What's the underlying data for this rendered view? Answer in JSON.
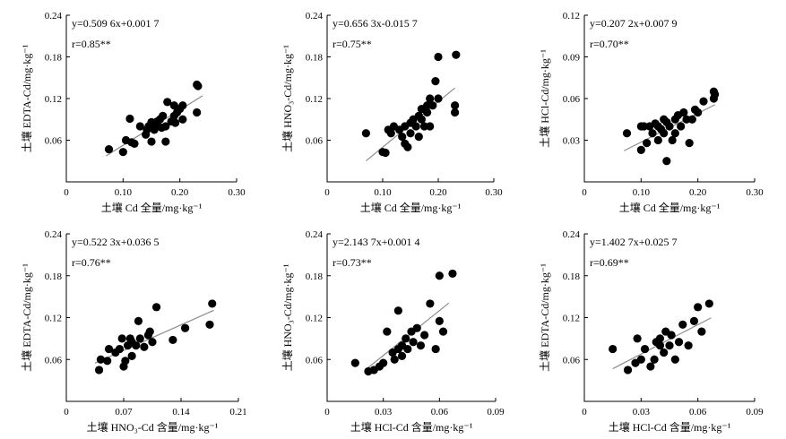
{
  "chart_data": [
    {
      "type": "scatter",
      "xlabel": "土壤 Cd 全量/mg·kg⁻¹",
      "ylabel": "土壤 EDTA-Cd/mg·kg⁻¹",
      "xlim": [
        0,
        0.3
      ],
      "ylim": [
        0,
        0.24
      ],
      "xticks": [
        "0",
        "0.10",
        "0.20",
        "0.30"
      ],
      "yticks": [
        "0.06",
        "0.12",
        "0.18",
        "0.24"
      ],
      "equation": "y=0.509 6x+0.001 7",
      "r_label": "r=0.85**",
      "slope": 0.5096,
      "intercept": 0.0017,
      "fit_x": [
        0.07,
        0.24
      ],
      "points": [
        [
          0.075,
          0.047
        ],
        [
          0.1,
          0.043
        ],
        [
          0.105,
          0.06
        ],
        [
          0.112,
          0.091
        ],
        [
          0.115,
          0.057
        ],
        [
          0.12,
          0.055
        ],
        [
          0.13,
          0.08
        ],
        [
          0.14,
          0.068
        ],
        [
          0.142,
          0.075
        ],
        [
          0.145,
          0.08
        ],
        [
          0.15,
          0.058
        ],
        [
          0.15,
          0.086
        ],
        [
          0.155,
          0.075
        ],
        [
          0.16,
          0.087
        ],
        [
          0.16,
          0.082
        ],
        [
          0.165,
          0.09
        ],
        [
          0.168,
          0.078
        ],
        [
          0.17,
          0.095
        ],
        [
          0.175,
          0.08
        ],
        [
          0.175,
          0.058
        ],
        [
          0.178,
          0.115
        ],
        [
          0.185,
          0.087
        ],
        [
          0.19,
          0.095
        ],
        [
          0.19,
          0.11
        ],
        [
          0.192,
          0.085
        ],
        [
          0.195,
          0.1
        ],
        [
          0.2,
          0.105
        ],
        [
          0.205,
          0.11
        ],
        [
          0.205,
          0.09
        ],
        [
          0.23,
          0.1
        ],
        [
          0.23,
          0.14
        ],
        [
          0.232,
          0.138
        ]
      ]
    },
    {
      "type": "scatter",
      "xlabel": "土壤 Cd 全量/mg·kg⁻¹",
      "ylabel": "土壤 HNO₃-Cd/mg·kg⁻¹",
      "xlim": [
        0,
        0.3
      ],
      "ylim": [
        0,
        0.24
      ],
      "xticks": [
        "0",
        "0.10",
        "0.20",
        "0.30"
      ],
      "yticks": [
        "0.06",
        "0.12",
        "0.18",
        "0.24"
      ],
      "equation": "y=0.656 3x-0.015 7",
      "r_label": "r=0.75**",
      "slope": 0.6563,
      "intercept": -0.0157,
      "fit_x": [
        0.07,
        0.23
      ],
      "points": [
        [
          0.07,
          0.07
        ],
        [
          0.1,
          0.043
        ],
        [
          0.105,
          0.042
        ],
        [
          0.11,
          0.075
        ],
        [
          0.115,
          0.07
        ],
        [
          0.12,
          0.08
        ],
        [
          0.13,
          0.075
        ],
        [
          0.135,
          0.065
        ],
        [
          0.14,
          0.08
        ],
        [
          0.14,
          0.055
        ],
        [
          0.145,
          0.05
        ],
        [
          0.15,
          0.07
        ],
        [
          0.15,
          0.085
        ],
        [
          0.155,
          0.09
        ],
        [
          0.16,
          0.08
        ],
        [
          0.165,
          0.095
        ],
        [
          0.165,
          0.065
        ],
        [
          0.17,
          0.09
        ],
        [
          0.17,
          0.105
        ],
        [
          0.175,
          0.08
        ],
        [
          0.18,
          0.11
        ],
        [
          0.18,
          0.1
        ],
        [
          0.185,
          0.12
        ],
        [
          0.185,
          0.08
        ],
        [
          0.19,
          0.11
        ],
        [
          0.195,
          0.145
        ],
        [
          0.2,
          0.18
        ],
        [
          0.2,
          0.12
        ],
        [
          0.23,
          0.1
        ],
        [
          0.23,
          0.11
        ],
        [
          0.232,
          0.183
        ]
      ]
    },
    {
      "type": "scatter",
      "xlabel": "土壤 Cd 全量/mg·kg⁻¹",
      "ylabel": "土壤 HCl-Cd/mg·kg⁻¹",
      "xlim": [
        0,
        0.3
      ],
      "ylim": [
        0,
        0.12
      ],
      "xticks": [
        "0",
        "0.10",
        "0.20",
        "0.30"
      ],
      "yticks": [
        "0.03",
        "0.06",
        "0.09",
        "0.12"
      ],
      "equation": "y=0.207 2x+0.007 9",
      "r_label": "r=0.70**",
      "slope": 0.2072,
      "intercept": 0.0079,
      "fit_x": [
        0.07,
        0.23
      ],
      "points": [
        [
          0.075,
          0.035
        ],
        [
          0.1,
          0.023
        ],
        [
          0.1,
          0.04
        ],
        [
          0.105,
          0.04
        ],
        [
          0.11,
          0.028
        ],
        [
          0.115,
          0.04
        ],
        [
          0.12,
          0.035
        ],
        [
          0.125,
          0.042
        ],
        [
          0.13,
          0.04
        ],
        [
          0.13,
          0.03
        ],
        [
          0.135,
          0.038
        ],
        [
          0.14,
          0.035
        ],
        [
          0.14,
          0.045
        ],
        [
          0.145,
          0.043
        ],
        [
          0.145,
          0.015
        ],
        [
          0.15,
          0.04
        ],
        [
          0.155,
          0.03
        ],
        [
          0.16,
          0.045
        ],
        [
          0.16,
          0.035
        ],
        [
          0.165,
          0.048
        ],
        [
          0.17,
          0.04
        ],
        [
          0.175,
          0.05
        ],
        [
          0.18,
          0.045
        ],
        [
          0.185,
          0.028
        ],
        [
          0.19,
          0.045
        ],
        [
          0.195,
          0.052
        ],
        [
          0.2,
          0.05
        ],
        [
          0.21,
          0.058
        ],
        [
          0.228,
          0.06
        ],
        [
          0.228,
          0.065
        ],
        [
          0.23,
          0.063
        ]
      ]
    },
    {
      "type": "scatter",
      "xlabel": "土壤 HNO₃-Cd 含量/mg·kg⁻¹",
      "ylabel": "土壤 EDTA-Cd/mg·kg⁻¹",
      "xlim": [
        0,
        0.21
      ],
      "ylim": [
        0,
        0.24
      ],
      "xticks": [
        "0",
        "0.07",
        "0.14",
        "0.21"
      ],
      "yticks": [
        "0.06",
        "0.12",
        "0.18",
        "0.24"
      ],
      "equation": "y=0.522 3x+0.036 5",
      "r_label": "r=0.76**",
      "slope": 0.5223,
      "intercept": 0.0365,
      "fit_x": [
        0.035,
        0.18
      ],
      "points": [
        [
          0.04,
          0.045
        ],
        [
          0.042,
          0.06
        ],
        [
          0.05,
          0.058
        ],
        [
          0.052,
          0.075
        ],
        [
          0.06,
          0.07
        ],
        [
          0.065,
          0.075
        ],
        [
          0.068,
          0.09
        ],
        [
          0.07,
          0.05
        ],
        [
          0.072,
          0.058
        ],
        [
          0.075,
          0.08
        ],
        [
          0.078,
          0.09
        ],
        [
          0.08,
          0.085
        ],
        [
          0.08,
          0.065
        ],
        [
          0.085,
          0.08
        ],
        [
          0.088,
          0.115
        ],
        [
          0.09,
          0.09
        ],
        [
          0.095,
          0.078
        ],
        [
          0.1,
          0.095
        ],
        [
          0.102,
          0.1
        ],
        [
          0.105,
          0.085
        ],
        [
          0.11,
          0.135
        ],
        [
          0.13,
          0.088
        ],
        [
          0.145,
          0.105
        ],
        [
          0.175,
          0.11
        ],
        [
          0.178,
          0.14
        ]
      ]
    },
    {
      "type": "scatter",
      "xlabel": "土壤 HCl-Cd 含量/mg·kg⁻¹",
      "ylabel": "土壤 HNO₃-Cd/mg·kg⁻¹",
      "xlim": [
        0,
        0.09
      ],
      "ylim": [
        0,
        0.24
      ],
      "xticks": [
        "0",
        "0.03",
        "0.06",
        "0.09"
      ],
      "yticks": [
        "0.06",
        "0.12",
        "0.18",
        "0.24"
      ],
      "equation": "y=2.143 7x+0.001 4",
      "r_label": "r=0.73**",
      "slope": 2.1437,
      "intercept": 0.0014,
      "fit_x": [
        0.02,
        0.065
      ],
      "points": [
        [
          0.015,
          0.055
        ],
        [
          0.022,
          0.043
        ],
        [
          0.025,
          0.045
        ],
        [
          0.028,
          0.05
        ],
        [
          0.03,
          0.055
        ],
        [
          0.032,
          0.1
        ],
        [
          0.035,
          0.07
        ],
        [
          0.036,
          0.06
        ],
        [
          0.038,
          0.075
        ],
        [
          0.038,
          0.13
        ],
        [
          0.04,
          0.08
        ],
        [
          0.04,
          0.065
        ],
        [
          0.042,
          0.09
        ],
        [
          0.043,
          0.075
        ],
        [
          0.045,
          0.1
        ],
        [
          0.046,
          0.085
        ],
        [
          0.048,
          0.105
        ],
        [
          0.05,
          0.08
        ],
        [
          0.052,
          0.095
        ],
        [
          0.055,
          0.14
        ],
        [
          0.058,
          0.075
        ],
        [
          0.06,
          0.18
        ],
        [
          0.06,
          0.115
        ],
        [
          0.062,
          0.1
        ],
        [
          0.067,
          0.183
        ]
      ]
    },
    {
      "type": "scatter",
      "xlabel": "土壤 HCl-Cd 含量/mg·kg⁻¹",
      "ylabel": "土壤 EDTA-Cd/mg·kg⁻¹",
      "xlim": [
        0,
        0.09
      ],
      "ylim": [
        0,
        0.24
      ],
      "xticks": [
        "0",
        "0.03",
        "0.06",
        "0.09"
      ],
      "yticks": [
        "0.06",
        "0.12",
        "0.18",
        "0.24"
      ],
      "equation": "y=1.402 7x+0.025 7",
      "r_label": "r=0.69**",
      "slope": 1.4027,
      "intercept": 0.0257,
      "fit_x": [
        0.015,
        0.067
      ],
      "points": [
        [
          0.015,
          0.075
        ],
        [
          0.023,
          0.045
        ],
        [
          0.027,
          0.055
        ],
        [
          0.028,
          0.09
        ],
        [
          0.03,
          0.06
        ],
        [
          0.032,
          0.075
        ],
        [
          0.035,
          0.05
        ],
        [
          0.037,
          0.06
        ],
        [
          0.038,
          0.085
        ],
        [
          0.04,
          0.08
        ],
        [
          0.04,
          0.09
        ],
        [
          0.042,
          0.07
        ],
        [
          0.043,
          0.1
        ],
        [
          0.045,
          0.08
        ],
        [
          0.046,
          0.095
        ],
        [
          0.048,
          0.06
        ],
        [
          0.05,
          0.085
        ],
        [
          0.052,
          0.11
        ],
        [
          0.055,
          0.08
        ],
        [
          0.058,
          0.115
        ],
        [
          0.06,
          0.135
        ],
        [
          0.062,
          0.1
        ],
        [
          0.066,
          0.14
        ]
      ]
    }
  ]
}
